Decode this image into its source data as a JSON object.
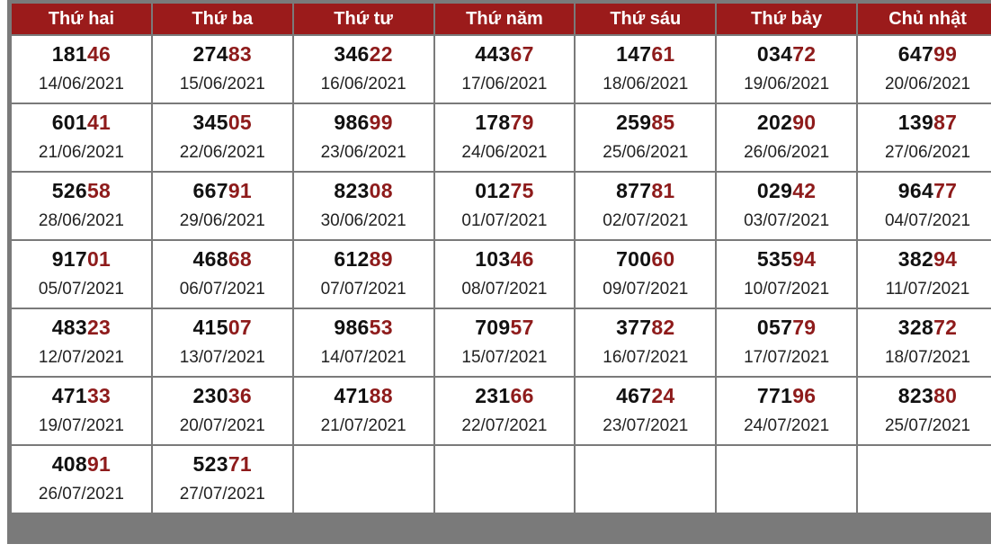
{
  "headers": [
    "Thứ hai",
    "Thứ ba",
    "Thứ tư",
    "Thứ năm",
    "Thứ sáu",
    "Thứ bảy",
    "Chủ nhật"
  ],
  "colors": {
    "header_bg": "#9b1b1b",
    "highlight": "#f5c143",
    "weekend": "#e3f0dd",
    "pale_highlight": "#fde8a8",
    "tail_digits": "#8e1b1b"
  },
  "rows": [
    [
      {
        "head": "181",
        "tail": "46",
        "date": "14/06/2021"
      },
      {
        "head": "274",
        "tail": "83",
        "date": "15/06/2021"
      },
      {
        "head": "346",
        "tail": "22",
        "date": "16/06/2021"
      },
      {
        "head": "443",
        "tail": "67",
        "date": "17/06/2021"
      },
      {
        "head": "147",
        "tail": "61",
        "date": "18/06/2021",
        "highlight": true
      },
      {
        "head": "034",
        "tail": "72",
        "date": "19/06/2021"
      },
      {
        "head": "647",
        "tail": "99",
        "date": "20/06/2021"
      }
    ],
    [
      {
        "head": "601",
        "tail": "41",
        "date": "21/06/2021"
      },
      {
        "head": "345",
        "tail": "05",
        "date": "22/06/2021"
      },
      {
        "head": "986",
        "tail": "99",
        "date": "23/06/2021"
      },
      {
        "head": "178",
        "tail": "79",
        "date": "24/06/2021"
      },
      {
        "head": "259",
        "tail": "85",
        "date": "25/06/2021",
        "highlight": true
      },
      {
        "head": "202",
        "tail": "90",
        "date": "26/06/2021"
      },
      {
        "head": "139",
        "tail": "87",
        "date": "27/06/2021"
      }
    ],
    [
      {
        "head": "526",
        "tail": "58",
        "date": "28/06/2021"
      },
      {
        "head": "667",
        "tail": "91",
        "date": "29/06/2021"
      },
      {
        "head": "823",
        "tail": "08",
        "date": "30/06/2021",
        "highlight": true
      },
      {
        "head": "012",
        "tail": "75",
        "date": "01/07/2021"
      },
      {
        "head": "877",
        "tail": "81",
        "date": "02/07/2021",
        "highlight": true
      },
      {
        "head": "029",
        "tail": "42",
        "date": "03/07/2021"
      },
      {
        "head": "964",
        "tail": "77",
        "date": "04/07/2021"
      }
    ],
    [
      {
        "head": "917",
        "tail": "01",
        "date": "05/07/2021"
      },
      {
        "head": "468",
        "tail": "68",
        "date": "06/07/2021"
      },
      {
        "head": "612",
        "tail": "89",
        "date": "07/07/2021",
        "highlight": true
      },
      {
        "head": "103",
        "tail": "46",
        "date": "08/07/2021"
      },
      {
        "head": "700",
        "tail": "60",
        "date": "09/07/2021",
        "highlight": true
      },
      {
        "head": "535",
        "tail": "94",
        "date": "10/07/2021"
      },
      {
        "head": "382",
        "tail": "94",
        "date": "11/07/2021"
      }
    ],
    [
      {
        "head": "483",
        "tail": "23",
        "date": "12/07/2021"
      },
      {
        "head": "415",
        "tail": "07",
        "date": "13/07/2021"
      },
      {
        "head": "986",
        "tail": "53",
        "date": "14/07/2021",
        "highlight": true
      },
      {
        "head": "709",
        "tail": "57",
        "date": "15/07/2021"
      },
      {
        "head": "377",
        "tail": "82",
        "date": "16/07/2021",
        "highlight": true
      },
      {
        "head": "057",
        "tail": "79",
        "date": "17/07/2021"
      },
      {
        "head": "328",
        "tail": "72",
        "date": "18/07/2021"
      }
    ],
    [
      {
        "head": "471",
        "tail": "33",
        "date": "19/07/2021"
      },
      {
        "head": "230",
        "tail": "36",
        "date": "20/07/2021"
      },
      {
        "head": "471",
        "tail": "88",
        "date": "21/07/2021",
        "highlight": true
      },
      {
        "head": "231",
        "tail": "66",
        "date": "22/07/2021"
      },
      {
        "head": "467",
        "tail": "24",
        "date": "23/07/2021"
      },
      {
        "head": "771",
        "tail": "96",
        "date": "24/07/2021"
      },
      {
        "head": "823",
        "tail": "80",
        "date": "25/07/2021"
      }
    ],
    [
      {
        "head": "408",
        "tail": "91",
        "date": "26/07/2021"
      },
      {
        "head": "523",
        "tail": "71",
        "date": "27/07/2021"
      },
      {
        "empty": true,
        "pale": true
      },
      {
        "empty": true
      },
      {
        "empty": true
      },
      {
        "empty": true
      },
      {
        "empty": true
      }
    ]
  ]
}
